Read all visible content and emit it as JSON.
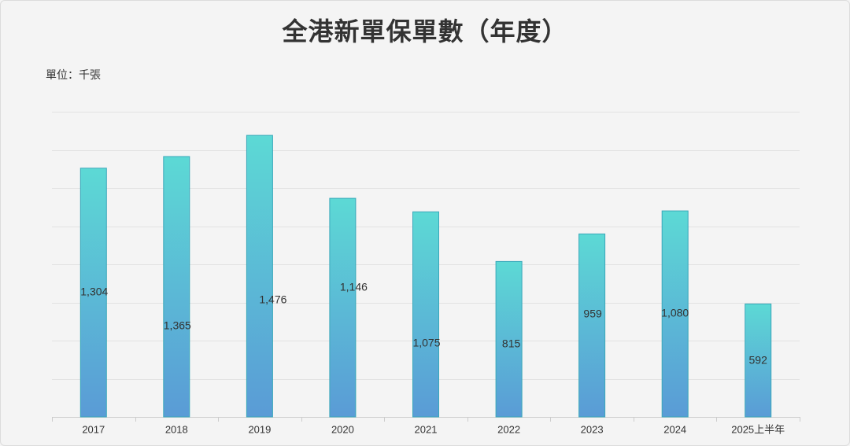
{
  "colors": {
    "background": "#f4f4f4",
    "bar_top": "#5cd9d5",
    "bar_bottom": "#5a9bd6",
    "bar_stroke": "#3aa8ba",
    "gridline": "#e2e2e2",
    "axis": "#cccccc",
    "text": "#333333"
  },
  "chart_data": {
    "type": "bar",
    "title": "全港新單保單數（年度）",
    "unit_label": "單位：千張",
    "categories": [
      "2017",
      "2018",
      "2019",
      "2020",
      "2021",
      "2022",
      "2023",
      "2024",
      "2025上半年"
    ],
    "values": [
      1304,
      1365,
      1476,
      1146,
      1075,
      815,
      959,
      1080,
      592
    ],
    "data_labels": [
      "1,304",
      "1,365",
      "1,476",
      "1,146",
      "1,075",
      "815",
      "959",
      "1,080",
      "592"
    ],
    "xlabel": "",
    "ylabel": "",
    "ylim": [
      0,
      1600
    ],
    "grid": true
  }
}
